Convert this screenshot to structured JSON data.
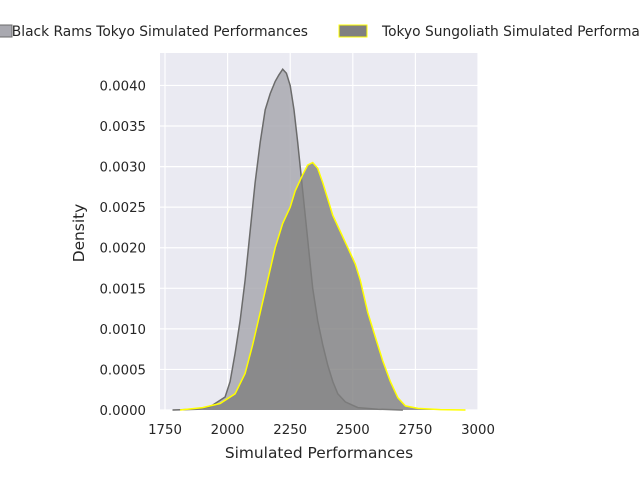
{
  "chart_data": {
    "type": "area",
    "xlabel": "Simulated Performances",
    "ylabel": "Density",
    "xlim": [
      1730,
      3000
    ],
    "ylim": [
      0,
      0.0044
    ],
    "x_ticks": [
      1750,
      2000,
      2250,
      2500,
      2750,
      3000
    ],
    "x_tick_labels": [
      "1750",
      "2000",
      "2250",
      "2500",
      "2750",
      "3000"
    ],
    "y_ticks": [
      0,
      0.0005,
      0.001,
      0.0015,
      0.002,
      0.0025,
      0.003,
      0.0035,
      0.004
    ],
    "y_tick_labels": [
      "0.0000",
      "0.0005",
      "0.0010",
      "0.0015",
      "0.0020",
      "0.0025",
      "0.0030",
      "0.0035",
      "0.0040"
    ],
    "grid": true,
    "legend_position": "top",
    "series": [
      {
        "name": "Black Rams Tokyo Simulated Performances",
        "fill": "#a9a9b0",
        "stroke": "#6b6b6b",
        "points": [
          [
            1780,
            0
          ],
          [
            1880,
            1e-05
          ],
          [
            1930,
            4e-05
          ],
          [
            1960,
            0.0001
          ],
          [
            1990,
            0.00016
          ],
          [
            2010,
            0.00035
          ],
          [
            2030,
            0.0007
          ],
          [
            2050,
            0.0011
          ],
          [
            2070,
            0.0016
          ],
          [
            2090,
            0.0022
          ],
          [
            2110,
            0.0028
          ],
          [
            2130,
            0.0033
          ],
          [
            2150,
            0.0037
          ],
          [
            2170,
            0.0039
          ],
          [
            2190,
            0.00405
          ],
          [
            2205,
            0.00413
          ],
          [
            2220,
            0.0042
          ],
          [
            2235,
            0.00415
          ],
          [
            2250,
            0.004
          ],
          [
            2265,
            0.0037
          ],
          [
            2280,
            0.0033
          ],
          [
            2300,
            0.0027
          ],
          [
            2320,
            0.0021
          ],
          [
            2340,
            0.0015
          ],
          [
            2360,
            0.0011
          ],
          [
            2380,
            0.0008
          ],
          [
            2400,
            0.00055
          ],
          [
            2420,
            0.00035
          ],
          [
            2440,
            0.0002
          ],
          [
            2470,
            0.0001
          ],
          [
            2520,
            3e-05
          ],
          [
            2600,
            1e-05
          ],
          [
            2700,
            0
          ]
        ]
      },
      {
        "name": "Tokyo Sungoliath Simulated Performances",
        "fill": "#808080",
        "stroke": "#ffff00",
        "points": [
          [
            1810,
            0
          ],
          [
            1900,
            3e-05
          ],
          [
            1970,
            8e-05
          ],
          [
            2030,
            0.0002
          ],
          [
            2070,
            0.00045
          ],
          [
            2100,
            0.0008
          ],
          [
            2130,
            0.0012
          ],
          [
            2160,
            0.0016
          ],
          [
            2190,
            0.002
          ],
          [
            2220,
            0.0023
          ],
          [
            2250,
            0.0025
          ],
          [
            2270,
            0.0027
          ],
          [
            2300,
            0.0029
          ],
          [
            2320,
            0.00302
          ],
          [
            2340,
            0.00305
          ],
          [
            2360,
            0.00298
          ],
          [
            2380,
            0.0028
          ],
          [
            2400,
            0.0026
          ],
          [
            2420,
            0.0024
          ],
          [
            2450,
            0.0022
          ],
          [
            2480,
            0.002
          ],
          [
            2510,
            0.0018
          ],
          [
            2530,
            0.0016
          ],
          [
            2560,
            0.0012
          ],
          [
            2590,
            0.0009
          ],
          [
            2620,
            0.0006
          ],
          [
            2650,
            0.00035
          ],
          [
            2680,
            0.00015
          ],
          [
            2710,
            5e-05
          ],
          [
            2760,
            2e-05
          ],
          [
            2850,
            5e-06
          ],
          [
            2950,
            0
          ]
        ]
      }
    ]
  }
}
